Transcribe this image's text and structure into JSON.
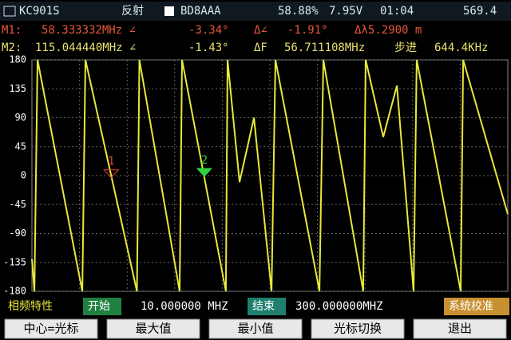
{
  "status_bar": {
    "model": "KC901S",
    "mode": "反射",
    "callsign": "BD8AAA",
    "battery": "58.88%",
    "voltage": "7.95V",
    "time": "01:04",
    "extra": "569.4"
  },
  "marker_rows": [
    [
      "M1:",
      "58.333332MHz ∠",
      "-3.34°",
      "Δ∠",
      "-1.91°",
      "Δλ5.2900 m"
    ],
    [
      "M2:",
      "115.044440MHz ∠",
      "-1.43°",
      "ΔF",
      "56.711108MHz",
      "步进",
      "644.4KHz"
    ]
  ],
  "chart_data": {
    "type": "line",
    "x": [
      10,
      11.5,
      13.4,
      40.7,
      42.6,
      74,
      75.5,
      100,
      101.5,
      128.2,
      129.2,
      136.5,
      145.3,
      156,
      158.4,
      185.2,
      187.6,
      211.9,
      213.4,
      224.1,
      232.4,
      242.6,
      244.5,
      271.3,
      272.8,
      300
    ],
    "series": [
      {
        "color": "#e8e83a",
        "values": [
          -130,
          -180,
          180,
          -180,
          180,
          -180,
          180,
          -180,
          180,
          -180,
          180,
          -10,
          90,
          -180,
          180,
          -180,
          180,
          -180,
          180,
          60,
          140,
          -180,
          180,
          -180,
          180,
          -60
        ]
      }
    ],
    "markers": [
      {
        "label": "1",
        "x": 58.333332,
        "y": -3.34,
        "color": "#e04030"
      },
      {
        "label": "2",
        "x": 115.04444,
        "y": -1.43,
        "color": "#30d040"
      }
    ],
    "xlim": [
      10,
      300
    ],
    "ylim": [
      -180,
      180
    ],
    "yticks": [
      180,
      135,
      90,
      45,
      0,
      -45,
      -90,
      -135,
      -180
    ],
    "grid": true
  },
  "footer": {
    "name": "相频特性",
    "start_label": "开始",
    "start": "10.000000 MHZ",
    "stop_label": "结束",
    "stop": "300.000000MHZ",
    "calib": "系统校准"
  },
  "buttons": [
    "中心=光标",
    "最大值",
    "最小值",
    "光标切换",
    "退出"
  ]
}
